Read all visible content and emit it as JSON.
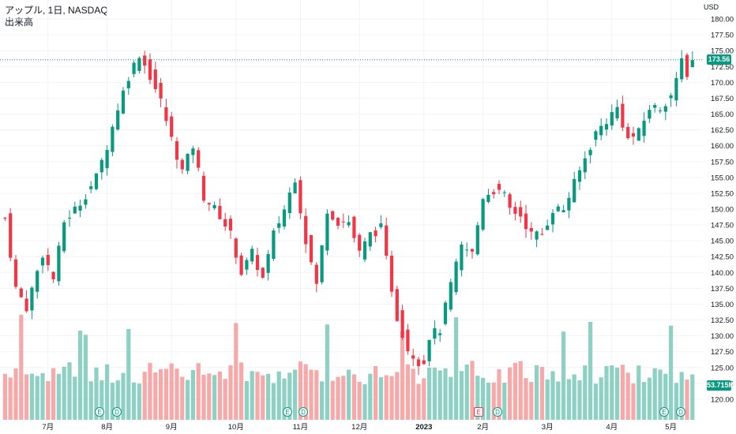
{
  "legend": {
    "title": "アップル, 1日, NASDAQ",
    "volume_label": "出来高"
  },
  "currency": "USD",
  "last_price_label": "173.56",
  "last_volume_label": "53.715M",
  "colors": {
    "up": "#089981",
    "down": "#f23645",
    "up_vol": "#8dd0c4",
    "down_vol": "#f7a9a9",
    "price_line": "#089981"
  },
  "events": [
    {
      "label": "E",
      "color": "green"
    },
    {
      "label": "D",
      "color": "green"
    },
    {
      "label": "E",
      "color": "green"
    },
    {
      "label": "D",
      "color": "green"
    },
    {
      "label": "E",
      "color": "red"
    },
    {
      "label": "D",
      "color": "green"
    },
    {
      "label": "E",
      "color": "green"
    },
    {
      "label": "D",
      "color": "green"
    }
  ],
  "chart_data": {
    "type": "candlestick",
    "y_axis_ticks": [
      "180.00",
      "177.50",
      "175.00",
      "172.50",
      "170.00",
      "167.50",
      "165.00",
      "162.50",
      "160.00",
      "157.50",
      "155.00",
      "152.50",
      "150.00",
      "147.50",
      "145.00",
      "142.50",
      "140.00",
      "137.50",
      "135.00",
      "132.50",
      "130.00",
      "127.50",
      "125.00",
      "122.50",
      "120.00"
    ],
    "ylim": [
      119,
      181
    ],
    "x_axis_ticks": [
      "7月",
      "8月",
      "9月",
      "10月",
      "11月",
      "12月",
      "2023",
      "2月",
      "3月",
      "4月",
      "5月"
    ],
    "x_axis_tick_index": [
      8,
      19,
      31,
      43,
      55,
      66,
      78,
      89,
      101,
      113,
      124
    ],
    "last_price": 173.56,
    "anchor_closes": [
      [
        0,
        148.5
      ],
      [
        2,
        137.5
      ],
      [
        4,
        134.5
      ],
      [
        7,
        143
      ],
      [
        9,
        139
      ],
      [
        11,
        148
      ],
      [
        14,
        151
      ],
      [
        17,
        155
      ],
      [
        19,
        160
      ],
      [
        21,
        166
      ],
      [
        23,
        171
      ],
      [
        25,
        174.5
      ],
      [
        27,
        171
      ],
      [
        29,
        167
      ],
      [
        31,
        161
      ],
      [
        33,
        156
      ],
      [
        35,
        160
      ],
      [
        37,
        152
      ],
      [
        40,
        149
      ],
      [
        42,
        146
      ],
      [
        44,
        140
      ],
      [
        46,
        143
      ],
      [
        48,
        139
      ],
      [
        50,
        146
      ],
      [
        52,
        150
      ],
      [
        54,
        155
      ],
      [
        56,
        145
      ],
      [
        58,
        138
      ],
      [
        60,
        150
      ],
      [
        62,
        148
      ],
      [
        64,
        148
      ],
      [
        66,
        143
      ],
      [
        68,
        146
      ],
      [
        70,
        147
      ],
      [
        71,
        142
      ],
      [
        73,
        133
      ],
      [
        75,
        128
      ],
      [
        77,
        126
      ],
      [
        78,
        126
      ],
      [
        79,
        130
      ],
      [
        81,
        131
      ],
      [
        83,
        138
      ],
      [
        85,
        144
      ],
      [
        87,
        143
      ],
      [
        89,
        152
      ],
      [
        91,
        153
      ],
      [
        93,
        152
      ],
      [
        94,
        150
      ],
      [
        96,
        149
      ],
      [
        98,
        146
      ],
      [
        100,
        146
      ],
      [
        102,
        150
      ],
      [
        104,
        150
      ],
      [
        106,
        154
      ],
      [
        108,
        158
      ],
      [
        110,
        162
      ],
      [
        112,
        164
      ],
      [
        114,
        166
      ],
      [
        116,
        161
      ],
      [
        118,
        162
      ],
      [
        120,
        166
      ],
      [
        122,
        166
      ],
      [
        124,
        168
      ],
      [
        125,
        170
      ],
      [
        126,
        173.5
      ],
      [
        127,
        171.5
      ],
      [
        128,
        173.5
      ]
    ]
  }
}
